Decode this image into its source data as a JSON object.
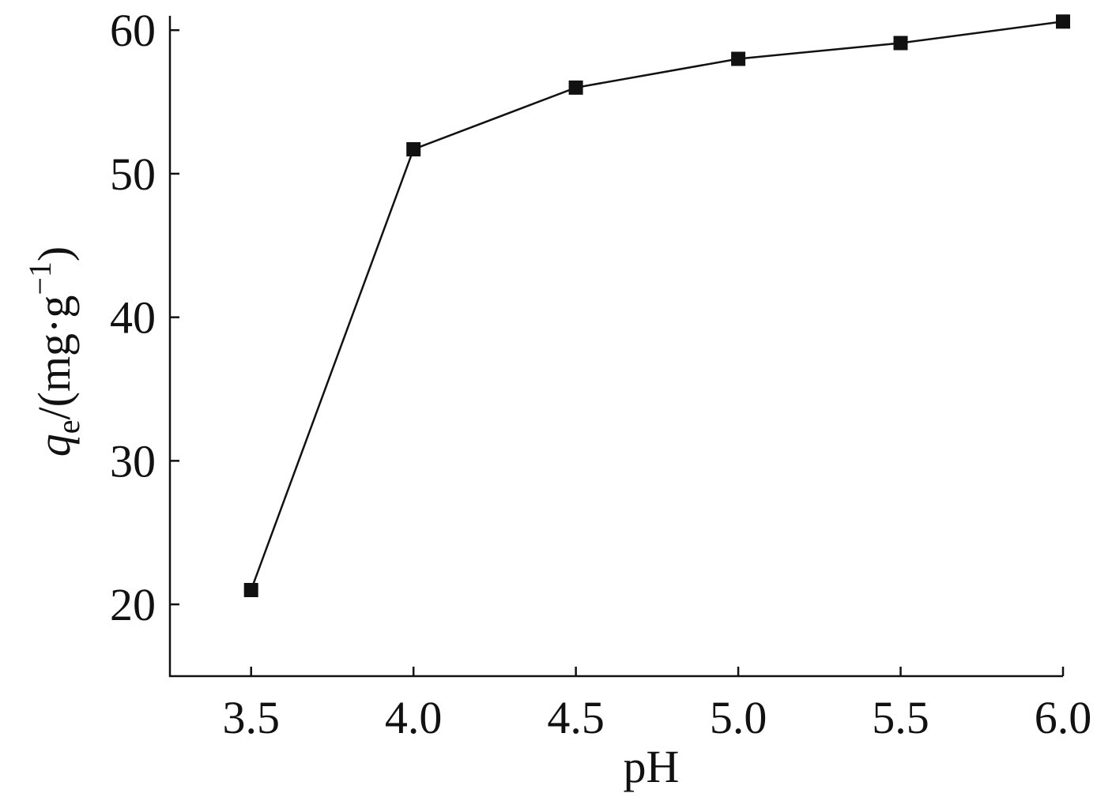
{
  "chart_data": {
    "type": "line",
    "x": [
      3.5,
      4.0,
      4.5,
      5.0,
      5.5,
      6.0
    ],
    "series": [
      {
        "values": [
          21.0,
          51.7,
          56.0,
          58.0,
          59.1,
          60.6
        ],
        "marker": "square",
        "color": "#111111"
      }
    ],
    "x_ticks": [
      "3.5",
      "4.0",
      "4.5",
      "5.0",
      "5.5",
      "6.0"
    ],
    "y_ticks": [
      "20",
      "30",
      "40",
      "50",
      "60"
    ],
    "xlabel": "pH",
    "ylabel": {
      "symbol": "q",
      "subscript": "e",
      "unit_prefix": "/(mg·g",
      "unit_superscript": "−1",
      "unit_suffix": ")"
    },
    "xlim": [
      3.25,
      6.0
    ],
    "ylim": [
      15.0,
      61.0
    ],
    "grid": false,
    "legend": "none"
  }
}
